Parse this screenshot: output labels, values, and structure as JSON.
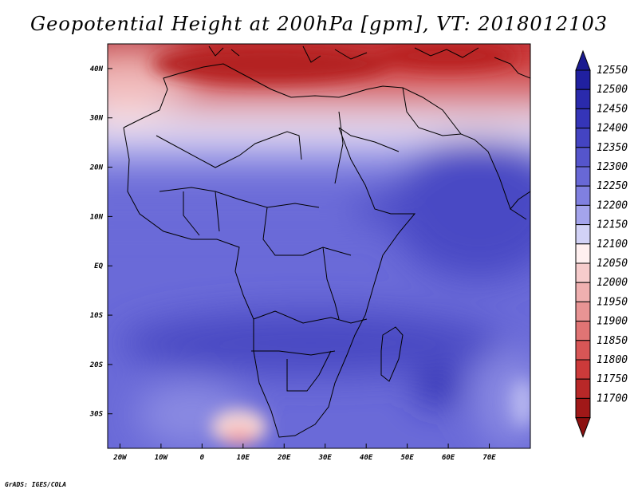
{
  "title": "Geopotential Height at 200hPa [gpm], VT: 2018012103",
  "credit": "GrADS: IGES/COLA",
  "map": {
    "projection": "latlon",
    "lon_range": [
      -23,
      80
    ],
    "lat_range": [
      -37,
      45
    ],
    "lat_ticks": [
      {
        "lat": 40,
        "label": "40N"
      },
      {
        "lat": 30,
        "label": "30N"
      },
      {
        "lat": 20,
        "label": "20N"
      },
      {
        "lat": 10,
        "label": "10N"
      },
      {
        "lat": 0,
        "label": "EQ"
      },
      {
        "lat": -10,
        "label": "10S"
      },
      {
        "lat": -20,
        "label": "20S"
      },
      {
        "lat": -30,
        "label": "30S"
      }
    ],
    "lon_ticks": [
      {
        "lon": -20,
        "label": "20W"
      },
      {
        "lon": -10,
        "label": "10W"
      },
      {
        "lon": 0,
        "label": "0"
      },
      {
        "lon": 10,
        "label": "10E"
      },
      {
        "lon": 20,
        "label": "20E"
      },
      {
        "lon": 30,
        "label": "30E"
      },
      {
        "lon": 40,
        "label": "40E"
      },
      {
        "lon": 50,
        "label": "50E"
      },
      {
        "lon": 60,
        "label": "60E"
      },
      {
        "lon": 70,
        "label": "70E"
      }
    ]
  },
  "colorbar": {
    "levels": [
      {
        "label": "12550",
        "color": "#2020a0"
      },
      {
        "label": "12500",
        "color": "#2a2aac"
      },
      {
        "label": "12450",
        "color": "#3535b8"
      },
      {
        "label": "12400",
        "color": "#4444c2"
      },
      {
        "label": "12350",
        "color": "#5555cc"
      },
      {
        "label": "12300",
        "color": "#6868d6"
      },
      {
        "label": "12250",
        "color": "#8080e0"
      },
      {
        "label": "12200",
        "color": "#a4a4ec"
      },
      {
        "label": "12150",
        "color": "#d2d2f6"
      },
      {
        "label": "12100",
        "color": "#fff0f0"
      },
      {
        "label": "12050",
        "color": "#f6cccc"
      },
      {
        "label": "12000",
        "color": "#efb0b0"
      },
      {
        "label": "11950",
        "color": "#e89494"
      },
      {
        "label": "11900",
        "color": "#e07474"
      },
      {
        "label": "11850",
        "color": "#d85656"
      },
      {
        "label": "11800",
        "color": "#cc3a3a"
      },
      {
        "label": "11750",
        "color": "#b82828"
      },
      {
        "label": "11700",
        "color": "#a01818"
      }
    ],
    "top_triangle_color": "#1a1a90",
    "bottom_triangle_color": "#8c1010"
  }
}
